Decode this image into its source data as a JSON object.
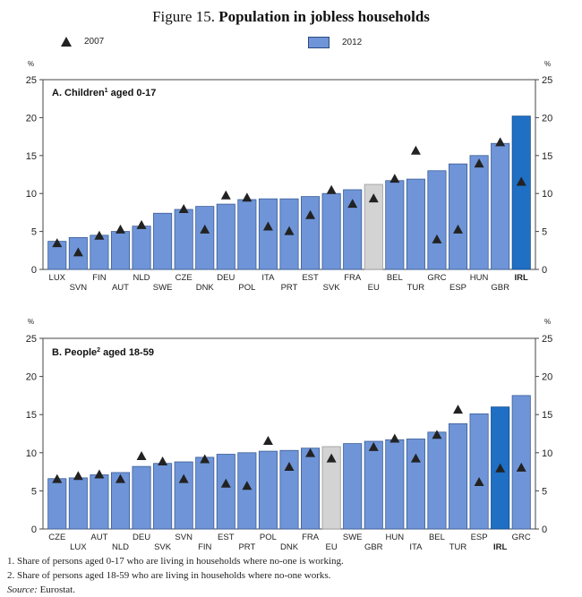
{
  "figure": {
    "number": "Figure 15.",
    "title": "Population in jobless households"
  },
  "legend": {
    "series_2007": "2007",
    "series_2012": "2012"
  },
  "colors": {
    "bar": "#6f95d8",
    "bar_stroke": "#3a5c96",
    "bar_eu": "#d3d3d3",
    "bar_irl": "#1f6fc4",
    "marker": "#222222",
    "axis": "#444444"
  },
  "chart_data": [
    {
      "type": "bar",
      "panel_title": "A. Children",
      "panel_sup": "1",
      "panel_suffix": " aged 0-17",
      "y_unit": "%",
      "ylim": [
        0,
        25
      ],
      "yticks": [
        0,
        5,
        10,
        15,
        20,
        25
      ],
      "categories": [
        "LUX",
        "SVN",
        "FIN",
        "AUT",
        "NLD",
        "SWE",
        "CZE",
        "DNK",
        "DEU",
        "POL",
        "ITA",
        "PRT",
        "EST",
        "SVK",
        "FRA",
        "EU",
        "BEL",
        "TUR",
        "GRC",
        "ESP",
        "HUN",
        "GBR",
        "IRL"
      ],
      "highlight_gray": "EU",
      "highlight_dark": "IRL",
      "bold_label": "IRL",
      "series": [
        {
          "name": "2012",
          "kind": "bar",
          "values": [
            3.7,
            4.2,
            4.5,
            5.0,
            5.7,
            7.4,
            7.9,
            8.3,
            8.6,
            9.2,
            9.3,
            9.3,
            9.6,
            10.0,
            10.5,
            11.2,
            11.7,
            11.9,
            13.0,
            13.9,
            15.0,
            16.6,
            20.2
          ]
        },
        {
          "name": "2007",
          "kind": "marker",
          "values": [
            3.4,
            2.2,
            4.4,
            5.2,
            5.8,
            null,
            7.9,
            5.2,
            9.7,
            9.4,
            5.6,
            5.0,
            7.1,
            10.4,
            8.6,
            9.3,
            11.9,
            15.6,
            3.9,
            5.2,
            13.9,
            16.7,
            11.5
          ]
        }
      ]
    },
    {
      "type": "bar",
      "panel_title": "B. People",
      "panel_sup": "2",
      "panel_suffix": " aged 18-59",
      "y_unit": "%",
      "ylim": [
        0,
        25
      ],
      "yticks": [
        0,
        5,
        10,
        15,
        20,
        25
      ],
      "categories": [
        "CZE",
        "LUX",
        "AUT",
        "NLD",
        "DEU",
        "SVK",
        "SVN",
        "FIN",
        "EST",
        "PRT",
        "POL",
        "DNK",
        "FRA",
        "EU",
        "SWE",
        "GBR",
        "HUN",
        "ITA",
        "BEL",
        "TUR",
        "ESP",
        "IRL",
        "GRC"
      ],
      "highlight_gray": "EU",
      "highlight_dark": "IRL",
      "bold_label": "IRL",
      "series": [
        {
          "name": "2012",
          "kind": "bar",
          "values": [
            6.6,
            6.7,
            7.1,
            7.4,
            8.2,
            8.6,
            8.8,
            9.4,
            9.8,
            10.0,
            10.2,
            10.3,
            10.6,
            10.8,
            11.2,
            11.5,
            11.7,
            11.8,
            12.7,
            13.8,
            15.1,
            16.0,
            17.5
          ]
        },
        {
          "name": "2007",
          "kind": "marker",
          "values": [
            6.5,
            6.9,
            7.1,
            6.5,
            9.5,
            8.8,
            6.5,
            9.1,
            5.9,
            5.6,
            11.5,
            8.1,
            9.9,
            9.2,
            null,
            10.7,
            11.8,
            9.2,
            12.3,
            15.6,
            6.1,
            7.9,
            8.0
          ]
        }
      ]
    }
  ],
  "footnotes": {
    "note1": "1.  Share of persons aged 0-17 who are living in households where no-one is working.",
    "note2": "2.  Share of persons aged 18-59 who are living in households where no-one works.",
    "source_label": "Source:",
    "source_text": " Eurostat."
  }
}
